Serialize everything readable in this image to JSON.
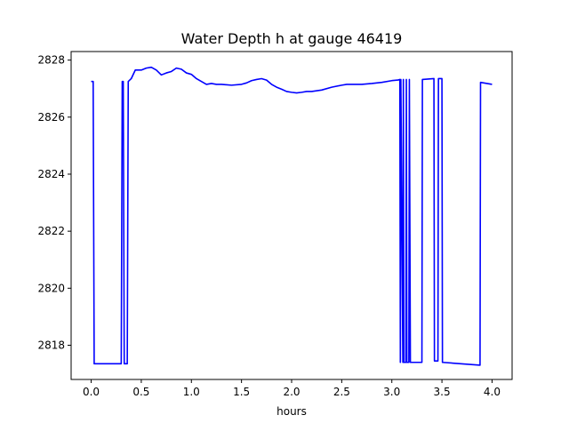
{
  "chart_data": {
    "type": "line",
    "title": "Water Depth h at gauge 46419",
    "xlabel": "hours",
    "ylabel": "",
    "xlim": [
      -0.2,
      4.2
    ],
    "ylim": [
      2816.8,
      2828.3
    ],
    "xticks": [
      0.0,
      0.5,
      1.0,
      1.5,
      2.0,
      2.5,
      3.0,
      3.5,
      4.0
    ],
    "xtick_labels": [
      "0.0",
      "0.5",
      "1.0",
      "1.5",
      "2.0",
      "2.5",
      "3.0",
      "3.5",
      "4.0"
    ],
    "yticks": [
      2818,
      2820,
      2822,
      2824,
      2826,
      2828
    ],
    "ytick_labels": [
      "2818",
      "2820",
      "2822",
      "2824",
      "2826",
      "2828"
    ],
    "grid": false,
    "legend": "none",
    "series": [
      {
        "color": "#0000ff",
        "x": [
          0.0,
          0.02,
          0.03,
          0.3,
          0.31,
          0.32,
          0.33,
          0.36,
          0.37,
          0.4,
          0.44,
          0.5,
          0.55,
          0.6,
          0.65,
          0.7,
          0.75,
          0.8,
          0.85,
          0.9,
          0.95,
          1.0,
          1.05,
          1.1,
          1.15,
          1.2,
          1.25,
          1.3,
          1.4,
          1.5,
          1.55,
          1.6,
          1.65,
          1.7,
          1.75,
          1.8,
          1.85,
          1.9,
          1.95,
          2.0,
          2.05,
          2.1,
          2.15,
          2.2,
          2.3,
          2.4,
          2.5,
          2.55,
          2.6,
          2.7,
          2.8,
          2.9,
          3.0,
          3.06,
          3.08,
          3.085,
          3.09,
          3.11,
          3.115,
          3.12,
          3.14,
          3.145,
          3.15,
          3.17,
          3.175,
          3.185,
          3.3,
          3.305,
          3.42,
          3.425,
          3.46,
          3.465,
          3.5,
          3.505,
          3.88,
          3.885,
          4.0
        ],
        "y": [
          2827.25,
          2827.25,
          2817.35,
          2817.35,
          2827.25,
          2827.25,
          2817.35,
          2817.35,
          2827.25,
          2827.35,
          2827.65,
          2827.65,
          2827.72,
          2827.75,
          2827.65,
          2827.48,
          2827.55,
          2827.6,
          2827.72,
          2827.68,
          2827.55,
          2827.5,
          2827.35,
          2827.25,
          2827.15,
          2827.18,
          2827.15,
          2827.15,
          2827.12,
          2827.15,
          2827.2,
          2827.28,
          2827.32,
          2827.35,
          2827.3,
          2827.15,
          2827.05,
          2826.98,
          2826.9,
          2826.87,
          2826.85,
          2826.87,
          2826.9,
          2826.9,
          2826.95,
          2827.05,
          2827.12,
          2827.15,
          2827.15,
          2827.15,
          2827.18,
          2827.22,
          2827.28,
          2827.3,
          2827.32,
          2817.4,
          2827.32,
          2817.4,
          2827.32,
          2817.4,
          2817.4,
          2827.32,
          2817.4,
          2817.4,
          2827.32,
          2817.4,
          2817.4,
          2827.32,
          2827.35,
          2817.45,
          2817.45,
          2827.35,
          2827.35,
          2817.4,
          2817.3,
          2827.22,
          2827.15
        ]
      }
    ]
  }
}
